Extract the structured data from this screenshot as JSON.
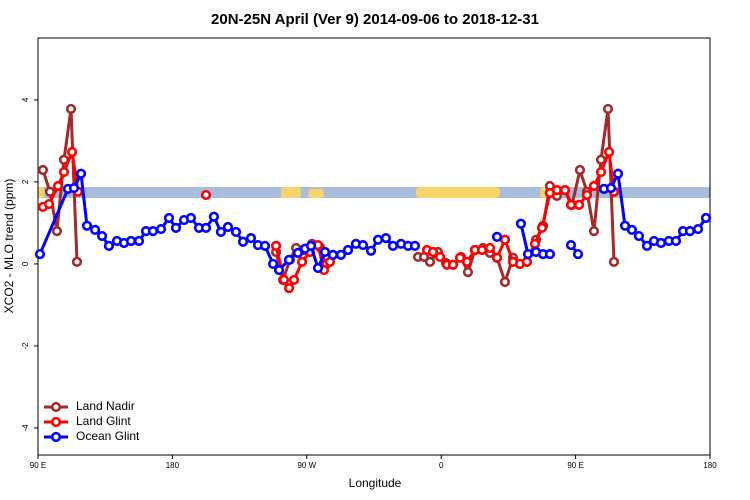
{
  "chart_data": {
    "type": "line",
    "title": "20N-25N April (Ver 9)   2014-09-06 to 2018-12-31",
    "xlabel": "Longitude",
    "ylabel": "XCO2 - MLO trend (ppm)",
    "xlim": [
      90,
      540
    ],
    "xticks": [
      {
        "value": 90,
        "label": "90 E"
      },
      180,
      {
        "value": 270,
        "label": "90 W"
      },
      {
        "value": 360,
        "label": "0"
      },
      {
        "value": 450,
        "label": "90 E"
      },
      {
        "value": 540,
        "label": "180"
      }
    ],
    "ylim": [
      -4.66,
      5.51
    ],
    "yticks": [
      -4,
      -2,
      0,
      2,
      4
    ],
    "legend": "bottom-left",
    "series": [
      {
        "name": "Land Nadir",
        "color": "#a52a2a",
        "x": [
          93.3,
          98,
          102.7,
          107.4,
          112.1,
          116.1,
          null,
          249.4,
          254.1,
          258.7,
          262.8,
          268.1,
          273.5,
          278.8,
          282.8,
          null,
          344.5,
          348.5,
          352.5,
          357.8,
          363.2,
          367.9,
          373.2,
          377.9,
          382.6,
          388,
          392.7,
          397.4,
          402.7,
          408.1,
          412.7,
          417.4,
          423.5,
          428.2,
          432.8,
          437.5,
          442.9,
          447.6,
          452.9,
          457.6,
          462.3,
          467,
          471.7,
          475.7
        ],
        "values": [
          2.29,
          1.76,
          0.8,
          2.54,
          3.78,
          0.05,
          null,
          0.29,
          -0.39,
          0.1,
          0.39,
          0.34,
          0.49,
          0.41,
          -0.02,
          null,
          0.17,
          0.17,
          0.05,
          0.29,
          0.02,
          -0.02,
          0.17,
          -0.2,
          0.34,
          0.39,
          0.27,
          0.15,
          -0.44,
          0.15,
          0,
          0.05,
          0.59,
          0.93,
          1.9,
          1.66,
          1.8,
          1.44,
          2.29,
          1.76,
          0.8,
          2.54,
          3.78,
          0.05
        ]
      },
      {
        "name": "Land Glint",
        "color": "#ff0000",
        "x": [
          93.3,
          97.4,
          103.4,
          107.4,
          112.8,
          116.8,
          null,
          202.5,
          null,
          249.4,
          254.7,
          258.1,
          261.4,
          266.8,
          272.1,
          277.5,
          281.5,
          285.5,
          null,
          350.5,
          354.5,
          359.2,
          363.9,
          367.9,
          372.6,
          377.3,
          382.6,
          387.3,
          392.7,
          397.4,
          402.7,
          408.1,
          412.7,
          417.4,
          422.8,
          427.5,
          432.8,
          437.5,
          442.9,
          446.9,
          452.3,
          457.6,
          462.3,
          467,
          472.4,
          475.7
        ],
        "values": [
          1.39,
          1.46,
          1.9,
          2.24,
          2.73,
          1.76,
          null,
          1.68,
          null,
          0.44,
          -0.39,
          -0.59,
          -0.39,
          0.05,
          0.29,
          0.46,
          -0.15,
          0.05,
          null,
          0.34,
          0.29,
          0.17,
          -0.02,
          -0.02,
          0.15,
          0.05,
          0.34,
          0.34,
          0.39,
          0.15,
          0.59,
          0.05,
          0,
          0.05,
          0.49,
          0.88,
          1.73,
          1.8,
          1.8,
          1.44,
          1.44,
          1.68,
          1.9,
          2.24,
          2.73,
          1.76
        ]
      },
      {
        "name": "Ocean Glint",
        "color": "#0000ff",
        "x": [
          91.3,
          110.1,
          114.1,
          118.8,
          122.8,
          128.2,
          132.9,
          137.5,
          142.9,
          147.6,
          152.3,
          157.6,
          162.3,
          167,
          172.4,
          177.7,
          182.4,
          187.8,
          192.4,
          197.8,
          202.5,
          207.8,
          212.5,
          217.2,
          222.6,
          227.3,
          232.6,
          237.3,
          242,
          247.4,
          251.4,
          258.1,
          264.1,
          268.8,
          272.8,
          277.5,
          282.2,
          287.5,
          292.9,
          297.6,
          302.9,
          307.6,
          313,
          317.7,
          323,
          327.7,
          333.1,
          337.8,
          342.4,
          null,
          397.4,
          null,
          413.4,
          418.1,
          423.5,
          428.2,
          432.8,
          null,
          446.9,
          451.6,
          null,
          469,
          473.7,
          478.4,
          483.1,
          487.7,
          492.4,
          497.8,
          502.5,
          507.2,
          512.5,
          517.2,
          521.9,
          526.6,
          532,
          537.3
        ],
        "values": [
          0.24,
          1.83,
          1.85,
          2.2,
          0.93,
          0.83,
          0.68,
          0.44,
          0.56,
          0.51,
          0.56,
          0.56,
          0.8,
          0.8,
          0.85,
          1.12,
          0.88,
          1.07,
          1.12,
          0.88,
          0.88,
          1.15,
          0.78,
          0.9,
          0.78,
          0.54,
          0.63,
          0.46,
          0.44,
          0,
          -0.15,
          0.1,
          0.27,
          0.37,
          0.44,
          -0.1,
          0.29,
          0.22,
          0.22,
          0.34,
          0.49,
          0.46,
          0.32,
          0.59,
          0.63,
          0.44,
          0.49,
          0.44,
          0.44,
          null,
          0.66,
          null,
          0.98,
          0.24,
          0.29,
          0.24,
          0.24,
          null,
          0.46,
          0.24,
          null,
          1.83,
          1.85,
          2.2,
          0.93,
          0.83,
          0.68,
          0.44,
          0.56,
          0.51,
          0.56,
          0.56,
          0.8,
          0.8,
          0.85,
          1.12
        ]
      }
    ]
  }
}
